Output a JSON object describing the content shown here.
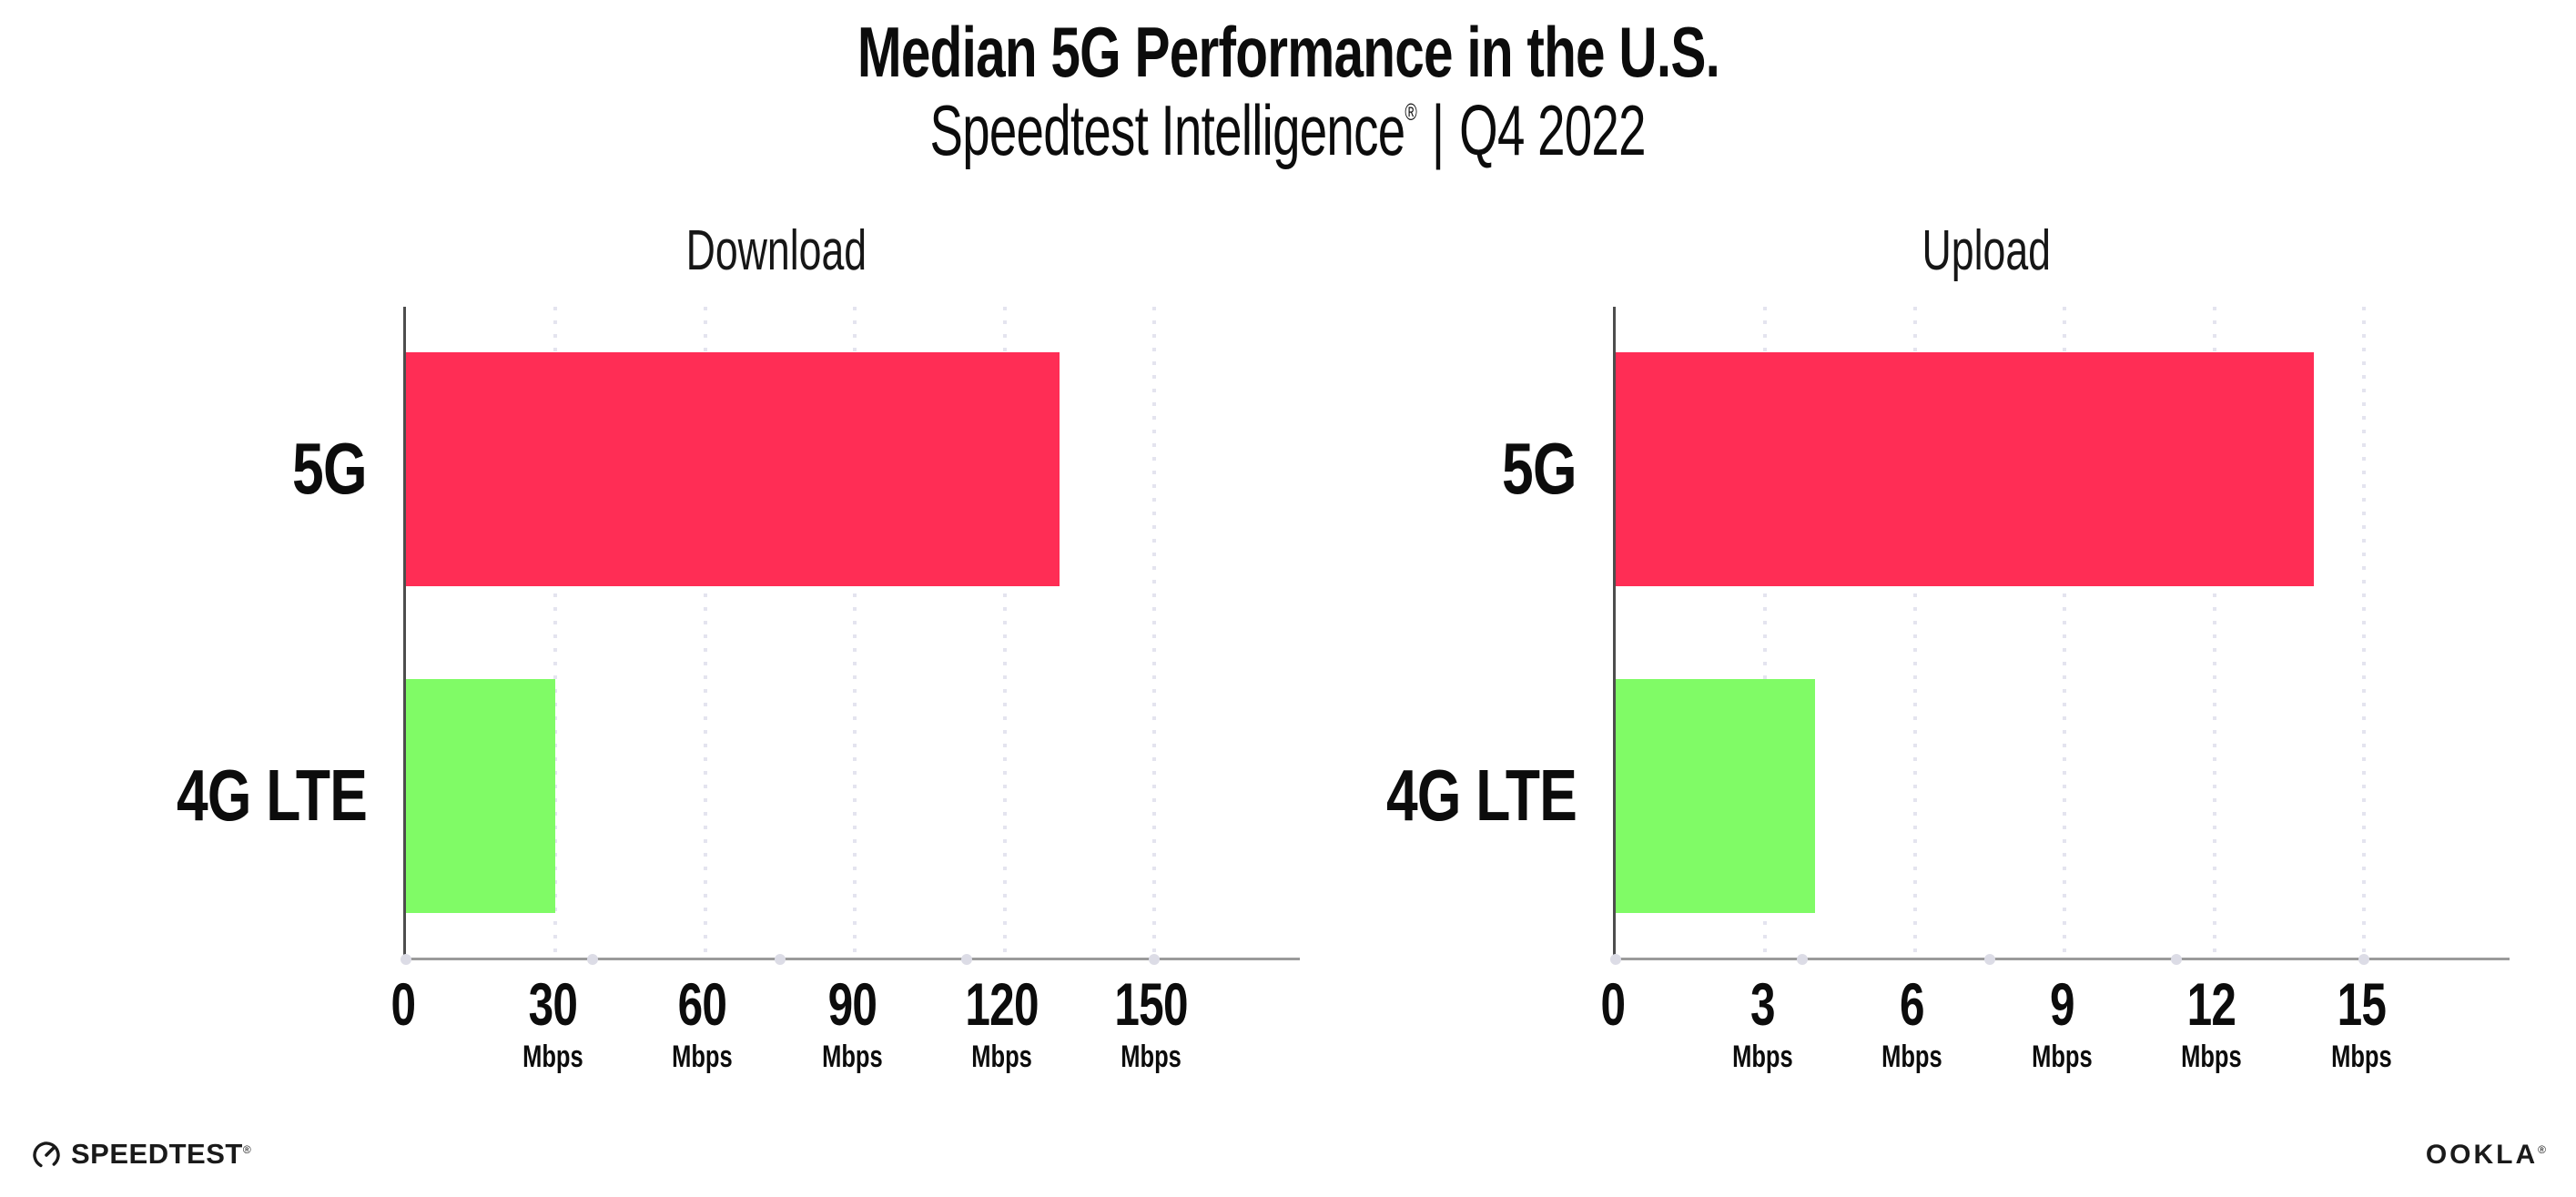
{
  "header": {
    "title": "Median 5G Performance in the U.S.",
    "subtitle": {
      "brand": "Speedtest Intelligence",
      "registered_mark": "®",
      "separator": "|",
      "period": "Q4 2022"
    }
  },
  "chart_data": [
    {
      "type": "bar",
      "orientation": "horizontal",
      "title": "Download",
      "categories": [
        "5G",
        "4G LTE"
      ],
      "values": [
        131,
        30
      ],
      "unit": "Mbps",
      "xlim": [
        0,
        150
      ],
      "xticks": [
        0,
        30,
        60,
        90,
        120,
        150
      ],
      "xtick_unit": "Mbps",
      "bar_colors": [
        "#FF2D55",
        "#80FB66"
      ],
      "grid": "dotted-vertical-at-ticks",
      "legend": "none"
    },
    {
      "type": "bar",
      "orientation": "horizontal",
      "title": "Upload",
      "categories": [
        "5G",
        "4G LTE"
      ],
      "values": [
        14,
        4
      ],
      "unit": "Mbps",
      "xlim": [
        0,
        15
      ],
      "xticks": [
        0,
        3,
        6,
        9,
        12,
        15
      ],
      "xtick_unit": "Mbps",
      "bar_colors": [
        "#FF2D55",
        "#80FB66"
      ],
      "grid": "dotted-vertical-at-ticks",
      "legend": "none"
    }
  ],
  "footer": {
    "speedtest_wordmark": "SPEEDTEST",
    "speedtest_registered": "®",
    "ookla_wordmark": "OOKLA",
    "ookla_registered": "®"
  },
  "colors": {
    "bar_5g": "#FF2D55",
    "bar_4g_lte": "#80FB66",
    "axis_vertical": "#4d4d4d",
    "axis_horizontal": "#9b9b9b",
    "gridline_dots": "#e4e4ef",
    "axis_quarter_dots": "#dcdce6",
    "text": "#0c0c0c",
    "background": "#ffffff"
  }
}
